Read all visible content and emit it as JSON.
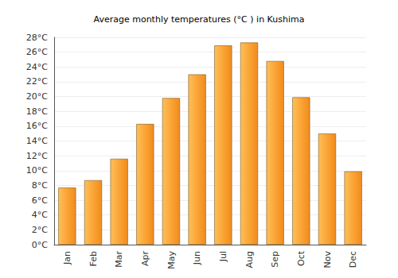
{
  "chart_data": {
    "type": "bar",
    "title": "Average monthly temperatures (°C ) in Kushima",
    "categories": [
      "Jan",
      "Feb",
      "Mar",
      "Apr",
      "May",
      "Jun",
      "Jul",
      "Aug",
      "Sep",
      "Oct",
      "Nov",
      "Dec"
    ],
    "values": [
      7.7,
      8.7,
      11.6,
      16.3,
      19.8,
      23.0,
      26.9,
      27.3,
      24.8,
      19.9,
      15.0,
      9.9
    ],
    "color": "#fba436",
    "ylim": [
      0,
      28
    ],
    "yticks": [
      {
        "value": 0,
        "label": "0°C"
      },
      {
        "value": 2,
        "label": "2°C"
      },
      {
        "value": 4,
        "label": "4°C"
      },
      {
        "value": 6,
        "label": "6°C"
      },
      {
        "value": 8,
        "label": "8°C"
      },
      {
        "value": 10,
        "label": "10°C"
      },
      {
        "value": 12,
        "label": "12°C"
      },
      {
        "value": 14,
        "label": "14°C"
      },
      {
        "value": 16,
        "label": "16°C"
      },
      {
        "value": 18,
        "label": "18°C"
      },
      {
        "value": 20,
        "label": "20°C"
      },
      {
        "value": 22,
        "label": "22°C"
      },
      {
        "value": 24,
        "label": "24°C"
      },
      {
        "value": 26,
        "label": "26°C"
      },
      {
        "value": 28,
        "label": "28°C"
      }
    ],
    "grid": true
  }
}
